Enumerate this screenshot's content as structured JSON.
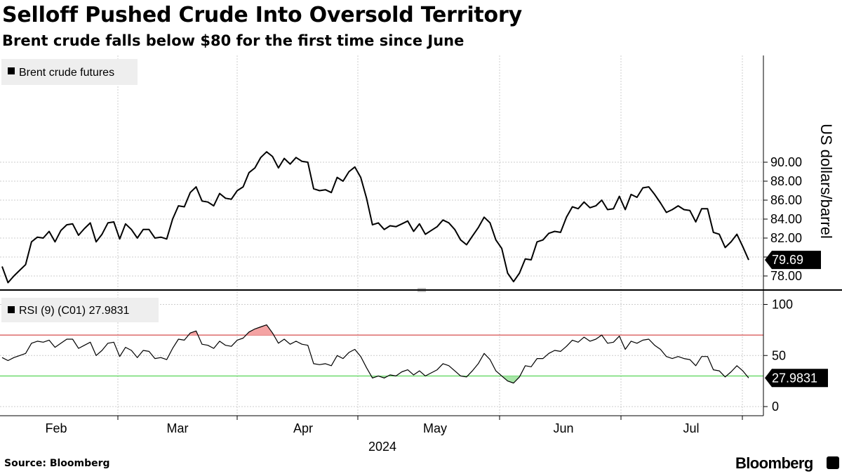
{
  "header": {
    "title": "Selloff Pushed Crude Into Oversold Territory",
    "subtitle": "Brent crude falls below $80 for the first time since June"
  },
  "footer": {
    "source": "Source: Bloomberg",
    "brand": "Bloomberg"
  },
  "colors": {
    "line": "#000000",
    "grid": "#cccccc",
    "overbought_line": "#cc2222",
    "overbought_fill": "#f4a3a3",
    "oversold_line": "#33cc33",
    "oversold_fill": "#a8e6a8",
    "legend_bg": "#eeeeee",
    "tag_bg": "#000000"
  },
  "chart_data": [
    {
      "type": "line",
      "title": "Selloff Pushed Crude Into Oversold Territory",
      "subtitle": "Brent crude falls below $80 for the first time since June",
      "ylabel": "US dollars/barrel",
      "xlabel": "2024",
      "ylim": [
        77.2,
        91.7
      ],
      "yticks": [
        "78.00",
        "80.00",
        "82.00",
        "84.00",
        "86.00",
        "88.00",
        "90.00"
      ],
      "grid": true,
      "legend_placement": "top-left",
      "series": [
        {
          "name": "Brent crude futures",
          "last_label": "79.69",
          "values": [
            79.0,
            77.3,
            78.0,
            78.6,
            79.2,
            81.6,
            82.1,
            82.0,
            82.7,
            81.6,
            82.8,
            83.4,
            83.5,
            82.3,
            83.0,
            83.6,
            81.6,
            82.4,
            83.6,
            83.7,
            81.9,
            83.5,
            82.9,
            82.0,
            82.9,
            82.9,
            82.0,
            82.1,
            81.9,
            84.0,
            85.4,
            85.3,
            86.8,
            87.4,
            85.9,
            85.8,
            85.4,
            86.7,
            86.2,
            86.1,
            87.0,
            87.4,
            88.9,
            89.4,
            90.5,
            91.1,
            90.6,
            89.4,
            90.4,
            89.8,
            90.5,
            90.1,
            90.0,
            87.2,
            87.0,
            87.1,
            86.8,
            88.4,
            88.0,
            89.0,
            89.5,
            88.4,
            86.2,
            83.4,
            83.6,
            82.9,
            83.3,
            83.2,
            83.5,
            83.8,
            82.7,
            83.5,
            82.4,
            82.8,
            83.2,
            83.9,
            83.6,
            82.9,
            81.8,
            81.3,
            82.2,
            83.1,
            84.2,
            83.6,
            81.8,
            80.9,
            78.3,
            77.4,
            78.3,
            79.8,
            79.7,
            81.6,
            81.8,
            82.5,
            82.7,
            82.6,
            84.2,
            85.3,
            85.1,
            85.8,
            85.2,
            85.4,
            86.0,
            85.0,
            85.1,
            86.4,
            85.0,
            86.6,
            86.3,
            87.3,
            87.4,
            86.6,
            85.7,
            84.7,
            85.0,
            85.4,
            85.0,
            84.9,
            83.7,
            85.1,
            85.1,
            82.6,
            82.4,
            81.0,
            81.6,
            82.4,
            81.1,
            79.69
          ]
        }
      ]
    },
    {
      "type": "line",
      "ylim": [
        -5,
        105
      ],
      "yticks": [
        "0",
        "50",
        "100"
      ],
      "grid": true,
      "legend_placement": "top-left",
      "reference_lines": [
        70,
        30
      ],
      "series": [
        {
          "name": "RSI (9) (C01) 27.9831",
          "last_label": "27.9831",
          "values": [
            48.0,
            45.0,
            48.0,
            50.0,
            52.0,
            62.0,
            64.0,
            63.0,
            65.0,
            58.0,
            62.0,
            66.0,
            66.0,
            57.0,
            60.0,
            63.0,
            50.0,
            55.0,
            62.0,
            63.0,
            49.0,
            58.0,
            55.0,
            48.0,
            55.0,
            54.0,
            47.0,
            48.0,
            46.0,
            57.0,
            66.0,
            65.0,
            72.0,
            74.0,
            61.0,
            60.0,
            57.0,
            64.0,
            60.0,
            59.0,
            65.0,
            67.0,
            73.0,
            76.0,
            78.0,
            80.0,
            72.0,
            62.0,
            66.0,
            61.0,
            64.0,
            61.0,
            60.0,
            42.0,
            41.0,
            42.0,
            40.0,
            50.0,
            47.0,
            53.0,
            56.0,
            49.0,
            38.0,
            28.0,
            30.0,
            28.0,
            31.0,
            30.0,
            34.0,
            36.0,
            31.0,
            35.0,
            30.0,
            33.0,
            36.0,
            42.0,
            40.0,
            35.0,
            30.0,
            29.0,
            35.0,
            42.0,
            52.0,
            46.0,
            35.0,
            30.0,
            25.0,
            23.0,
            29.0,
            40.0,
            39.0,
            47.0,
            47.0,
            52.0,
            55.0,
            54.0,
            59.0,
            65.0,
            63.0,
            68.0,
            64.0,
            66.0,
            70.0,
            62.0,
            63.0,
            69.0,
            56.0,
            64.0,
            62.0,
            65.0,
            66.0,
            60.0,
            56.0,
            49.0,
            47.0,
            49.0,
            47.0,
            46.0,
            40.0,
            49.0,
            49.0,
            36.0,
            35.0,
            29.0,
            34.0,
            40.0,
            35.0,
            27.98
          ]
        }
      ]
    }
  ],
  "x_axis": {
    "months": [
      "Feb",
      "Mar",
      "Apr",
      "May",
      "Jun",
      "Jul"
    ],
    "year": "2024"
  }
}
